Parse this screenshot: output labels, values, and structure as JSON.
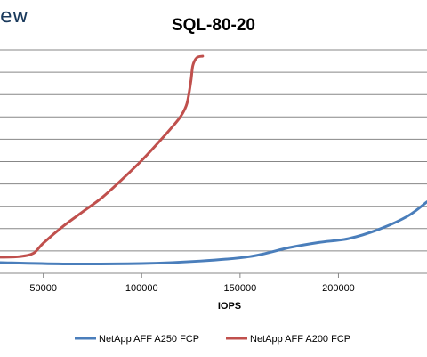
{
  "header": {
    "brand_text": "ew"
  },
  "chart_data": {
    "type": "line",
    "title": "SQL-80-20",
    "xlabel": "IOPS",
    "ylabel": "",
    "xlim": [
      28000,
      245000
    ],
    "ylim": [
      0,
      10
    ],
    "x_ticks": [
      50000,
      100000,
      150000,
      200000
    ],
    "x_tick_labels": [
      "50000",
      "100000",
      "150000",
      "200000"
    ],
    "grid": true,
    "legend_position": "bottom",
    "series": [
      {
        "name": "NetApp AFF A250 FCP",
        "color": "#4a7ebb",
        "points": [
          [
            28000,
            0.48
          ],
          [
            60000,
            0.42
          ],
          [
            100000,
            0.44
          ],
          [
            130000,
            0.55
          ],
          [
            155000,
            0.75
          ],
          [
            175000,
            1.15
          ],
          [
            190000,
            1.38
          ],
          [
            205000,
            1.55
          ],
          [
            220000,
            1.95
          ],
          [
            235000,
            2.55
          ],
          [
            245000,
            3.2
          ]
        ]
      },
      {
        "name": "NetApp AFF A200 FCP",
        "color": "#c0504d",
        "points": [
          [
            28000,
            0.72
          ],
          [
            38000,
            0.75
          ],
          [
            45000,
            0.9
          ],
          [
            50000,
            1.35
          ],
          [
            60000,
            2.1
          ],
          [
            70000,
            2.75
          ],
          [
            80000,
            3.4
          ],
          [
            90000,
            4.2
          ],
          [
            100000,
            5.05
          ],
          [
            110000,
            6.0
          ],
          [
            116000,
            6.6
          ],
          [
            120000,
            7.05
          ],
          [
            123000,
            7.6
          ],
          [
            125000,
            8.6
          ],
          [
            126000,
            9.3
          ],
          [
            128000,
            9.65
          ],
          [
            131000,
            9.72
          ]
        ]
      }
    ]
  }
}
